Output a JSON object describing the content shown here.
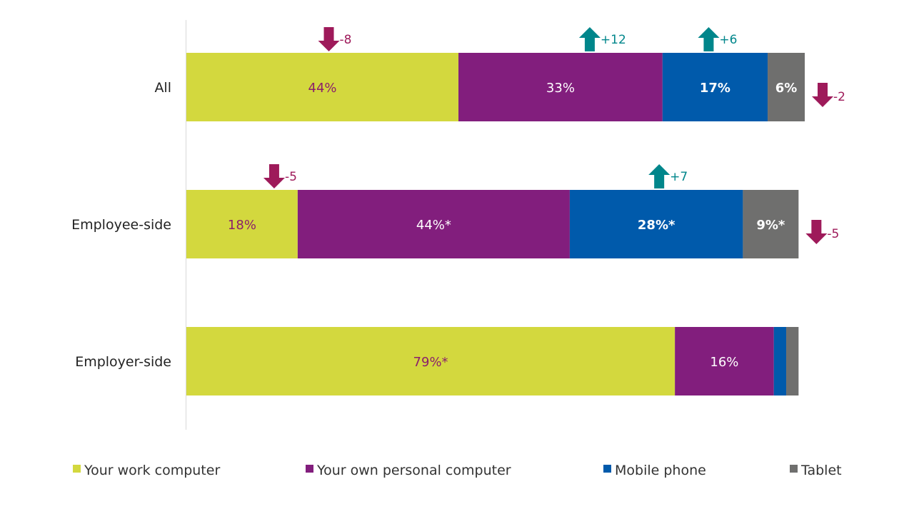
{
  "chart_data": {
    "type": "bar",
    "orientation": "horizontal",
    "stacked": true,
    "categories": [
      "All",
      "Employee-side",
      "Employer-side"
    ],
    "series": [
      {
        "name": "Your work computer",
        "color": "#D3D83E",
        "values": [
          44,
          18,
          79
        ],
        "labels": [
          "44%",
          "18%",
          "79%*"
        ]
      },
      {
        "name": "Your own personal computer",
        "color": "#821E7D",
        "values": [
          33,
          44,
          16
        ],
        "labels": [
          "33%",
          "44%*",
          "16%"
        ]
      },
      {
        "name": "Mobile phone",
        "color": "#005AAB",
        "values": [
          17,
          28,
          2
        ],
        "labels": [
          "17%",
          "28%*",
          ""
        ]
      },
      {
        "name": "Tablet",
        "color": "#6F6F6E",
        "values": [
          6,
          9,
          2
        ],
        "labels": [
          "6%",
          "9%*",
          ""
        ]
      }
    ],
    "change_annotations": [
      {
        "category": "All",
        "series": "Your work computer",
        "direction": "down",
        "text": "-8"
      },
      {
        "category": "All",
        "series": "Your own personal computer",
        "direction": "up",
        "text": "+12"
      },
      {
        "category": "All",
        "series": "Mobile phone",
        "direction": "up",
        "text": "+6"
      },
      {
        "category": "All",
        "series": "Tablet",
        "direction": "down",
        "text": "-2"
      },
      {
        "category": "Employee-side",
        "series": "Your work computer",
        "direction": "down",
        "text": "-5"
      },
      {
        "category": "Employee-side",
        "series": "Mobile phone",
        "direction": "up",
        "text": "+7"
      },
      {
        "category": "Employee-side",
        "series": "Tablet",
        "direction": "down",
        "text": "-5"
      }
    ],
    "colors": {
      "up": "#00868B",
      "down": "#9E1A5A",
      "label_on_light": "#8B1F6B",
      "label_on_dark": "#FFFFFF"
    },
    "xlim": [
      0,
      100
    ],
    "grid": false,
    "legend": "bottom"
  }
}
